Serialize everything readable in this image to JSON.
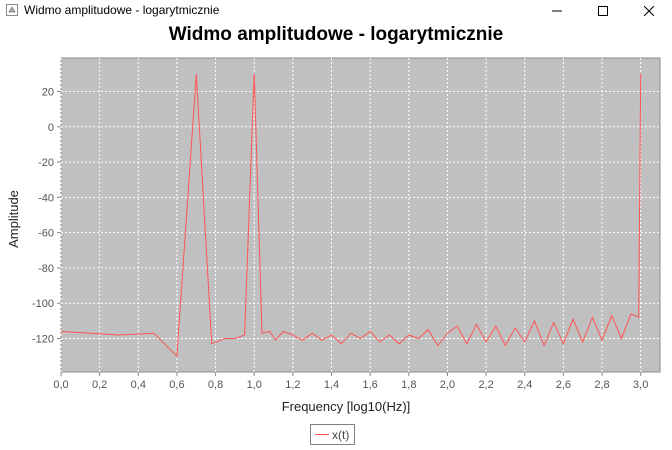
{
  "window": {
    "title": "Widmo amplitudowe - logarytmicznie"
  },
  "chart_data": {
    "type": "line",
    "title": "Widmo amplitudowe - logarytmicznie",
    "xlabel": "Frequency [log10(Hz)]",
    "ylabel": "Amplitude",
    "xlim": [
      0.0,
      3.1
    ],
    "ylim": [
      -139,
      39
    ],
    "x_ticks": [
      "0,0",
      "0,2",
      "0,4",
      "0,6",
      "0,8",
      "1,0",
      "1,2",
      "1,4",
      "1,6",
      "1,8",
      "2,0",
      "2,2",
      "2,4",
      "2,6",
      "2,8",
      "3,0"
    ],
    "y_ticks": [
      "20",
      "0",
      "-20",
      "-40",
      "-60",
      "-80",
      "-100",
      "-120"
    ],
    "grid": true,
    "legend_position": "bottom-center",
    "series": [
      {
        "name": "x(t)",
        "color": "#ff5555",
        "x": [
          0.0,
          0.3,
          0.48,
          0.6,
          0.7,
          0.78,
          0.85,
          0.9,
          0.95,
          1.0,
          1.04,
          1.08,
          1.11,
          1.15,
          1.2,
          1.25,
          1.3,
          1.35,
          1.4,
          1.45,
          1.5,
          1.55,
          1.6,
          1.65,
          1.7,
          1.75,
          1.8,
          1.85,
          1.9,
          1.95,
          2.0,
          2.05,
          2.1,
          2.15,
          2.2,
          2.25,
          2.3,
          2.35,
          2.4,
          2.45,
          2.5,
          2.55,
          2.6,
          2.65,
          2.7,
          2.75,
          2.8,
          2.85,
          2.9,
          2.95,
          2.99,
          3.0
        ],
        "y": [
          -116,
          -118,
          -117,
          -130,
          30,
          -123,
          -120,
          -120,
          -118,
          30,
          -117,
          -116,
          -121,
          -116,
          -118,
          -121,
          -117,
          -121,
          -118,
          -123,
          -117,
          -120,
          -116,
          -122,
          -118,
          -123,
          -118,
          -120,
          -115,
          -124,
          -117,
          -113,
          -123,
          -112,
          -122,
          -113,
          -124,
          -114,
          -122,
          -110,
          -124,
          -111,
          -123,
          -109,
          -122,
          -108,
          -121,
          -107,
          -120,
          -106,
          -108,
          30
        ]
      }
    ]
  }
}
